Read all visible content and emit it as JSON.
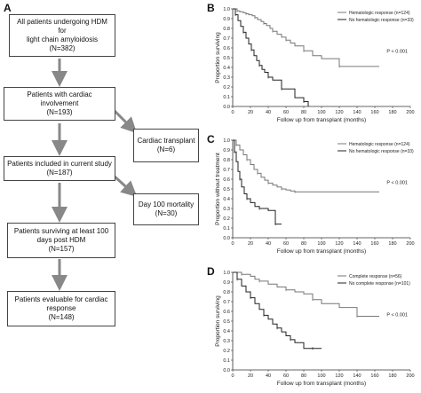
{
  "panel_labels": {
    "a": "A",
    "b": "B",
    "c": "C",
    "d": "D"
  },
  "flowchart": {
    "boxes": [
      {
        "lines": [
          "All patients undergoing HDM for",
          "light chain amyloidosis"
        ],
        "count": "(N=382)"
      },
      {
        "lines": [
          "Patients with cardiac involvement"
        ],
        "count": "(N=193)"
      },
      {
        "lines": [
          "Cardiac transplant"
        ],
        "count": "(N=6)"
      },
      {
        "lines": [
          "Patients included in current study"
        ],
        "count": "(N=187)"
      },
      {
        "lines": [
          "Day 100 mortality"
        ],
        "count": "(N=30)"
      },
      {
        "lines": [
          "Patients surviving at least 100",
          "days post HDM"
        ],
        "count": "(N=157)"
      },
      {
        "lines": [
          "Patients evaluable for cardiac",
          "response"
        ],
        "count": "(N=148)"
      }
    ]
  },
  "chart_data": [
    {
      "panel": "B",
      "type": "line",
      "ylabel": "Proportion surviving",
      "xlabel": "Follow up from transplant (months)",
      "xlim": [
        0,
        200
      ],
      "ylim": [
        0,
        1.0
      ],
      "xticks": [
        "0",
        "20",
        "40",
        "60",
        "80",
        "100",
        "120",
        "140",
        "160",
        "180",
        "200"
      ],
      "yticks": [
        "0.0",
        "0.1",
        "0.2",
        "0.3",
        "0.4",
        "0.5",
        "0.6",
        "0.7",
        "0.8",
        "0.9",
        "1.0"
      ],
      "pvalue": "P < 0.001",
      "legend": [
        "Hematologic response (n=124)",
        "No hematologic response (n=33)"
      ],
      "series": [
        {
          "name": "Hematologic response (n=124)",
          "color": "#777777",
          "x": [
            0,
            5,
            8,
            12,
            15,
            18,
            22,
            25,
            28,
            32,
            35,
            38,
            42,
            45,
            50,
            55,
            60,
            65,
            70,
            80,
            90,
            100,
            120,
            165
          ],
          "y": [
            1.0,
            0.98,
            0.97,
            0.96,
            0.95,
            0.94,
            0.93,
            0.91,
            0.89,
            0.87,
            0.85,
            0.83,
            0.8,
            0.77,
            0.74,
            0.71,
            0.68,
            0.65,
            0.62,
            0.57,
            0.52,
            0.49,
            0.41,
            0.41
          ]
        },
        {
          "name": "No hematologic response (n=33)",
          "color": "#222222",
          "x": [
            0,
            3,
            6,
            9,
            12,
            15,
            18,
            21,
            24,
            27,
            30,
            33,
            36,
            40,
            45,
            50,
            55,
            60,
            70,
            80,
            85
          ],
          "y": [
            1.0,
            0.94,
            0.88,
            0.82,
            0.76,
            0.7,
            0.64,
            0.58,
            0.52,
            0.47,
            0.42,
            0.38,
            0.35,
            0.3,
            0.27,
            0.27,
            0.18,
            0.18,
            0.09,
            0.05,
            0.0
          ]
        }
      ]
    },
    {
      "panel": "C",
      "type": "line",
      "ylabel": "Proportion without treatment",
      "xlabel": "Follow up from transplant (months)",
      "xlim": [
        0,
        200
      ],
      "ylim": [
        0,
        1.0
      ],
      "xticks": [
        "0",
        "20",
        "40",
        "60",
        "80",
        "100",
        "120",
        "140",
        "160",
        "180",
        "200"
      ],
      "yticks": [
        "0.0",
        "0.1",
        "0.2",
        "0.3",
        "0.4",
        "0.5",
        "0.6",
        "0.7",
        "0.8",
        "0.9",
        "1.0"
      ],
      "pvalue": "P < 0.001",
      "legend": [
        "Hematologic response (n=124)",
        "No hematologic response (n=33)"
      ],
      "series": [
        {
          "name": "Hematologic response (n=124)",
          "color": "#777777",
          "x": [
            0,
            4,
            8,
            12,
            16,
            20,
            24,
            28,
            32,
            36,
            40,
            45,
            50,
            55,
            60,
            65,
            70,
            165
          ],
          "y": [
            1.0,
            0.95,
            0.9,
            0.85,
            0.8,
            0.75,
            0.7,
            0.66,
            0.62,
            0.59,
            0.56,
            0.54,
            0.52,
            0.5,
            0.49,
            0.48,
            0.47,
            0.47
          ]
        },
        {
          "name": "No hematologic response (n=33)",
          "color": "#222222",
          "x": [
            0,
            2,
            4,
            6,
            8,
            10,
            13,
            16,
            20,
            25,
            30,
            40,
            45,
            48,
            50,
            55
          ],
          "y": [
            1.0,
            0.88,
            0.78,
            0.68,
            0.6,
            0.52,
            0.45,
            0.4,
            0.36,
            0.32,
            0.3,
            0.28,
            0.28,
            0.14,
            0.14,
            0.14
          ]
        }
      ]
    },
    {
      "panel": "D",
      "type": "line",
      "ylabel": "Proportion surviving",
      "xlabel": "Follow up from transplant (months)",
      "xlim": [
        0,
        200
      ],
      "ylim": [
        0,
        1.0
      ],
      "xticks": [
        "0",
        "20",
        "40",
        "60",
        "80",
        "100",
        "120",
        "140",
        "160",
        "180",
        "200"
      ],
      "yticks": [
        "0.0",
        "0.1",
        "0.2",
        "0.3",
        "0.4",
        "0.5",
        "0.6",
        "0.7",
        "0.8",
        "0.9",
        "1.0"
      ],
      "pvalue": "P < 0.001",
      "legend": [
        "Complete response (n=56)",
        "No complete response (n=101)"
      ],
      "series": [
        {
          "name": "Complete response (n=56)",
          "color": "#777777",
          "x": [
            0,
            10,
            20,
            25,
            30,
            40,
            50,
            60,
            70,
            80,
            90,
            100,
            120,
            140,
            165
          ],
          "y": [
            1.0,
            0.98,
            0.96,
            0.93,
            0.91,
            0.88,
            0.85,
            0.82,
            0.8,
            0.78,
            0.72,
            0.68,
            0.64,
            0.55,
            0.55
          ]
        },
        {
          "name": "No complete response (n=101)",
          "color": "#222222",
          "x": [
            0,
            5,
            10,
            15,
            20,
            25,
            30,
            35,
            40,
            45,
            50,
            55,
            60,
            65,
            70,
            80,
            90,
            100
          ],
          "y": [
            1.0,
            0.93,
            0.86,
            0.8,
            0.74,
            0.68,
            0.62,
            0.56,
            0.52,
            0.47,
            0.43,
            0.39,
            0.35,
            0.31,
            0.28,
            0.22,
            0.22,
            0.22
          ]
        }
      ]
    }
  ]
}
